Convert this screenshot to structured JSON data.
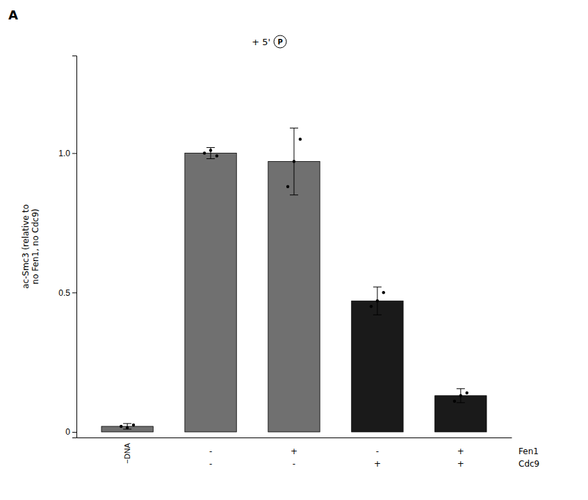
{
  "chart_data": {
    "type": "bar",
    "panel_label": "A",
    "categories": [
      "−DNA",
      null,
      null,
      null,
      null
    ],
    "x_label_rows": [
      {
        "name": "Fen1",
        "labels": [
          null,
          "-",
          "+",
          "-",
          "+"
        ]
      },
      {
        "name": "Cdc9",
        "labels": [
          null,
          "-",
          "-",
          "+",
          "+"
        ]
      }
    ],
    "values": [
      0.02,
      1.0,
      0.97,
      0.47,
      0.13
    ],
    "errors": [
      0.01,
      0.02,
      0.12,
      0.05,
      0.025
    ],
    "colors": [
      "#707070",
      "#707070",
      "#707070",
      "#1a1a1a",
      "#1a1a1a"
    ],
    "points": [
      [
        0.02,
        0.015,
        0.025
      ],
      [
        1.0,
        1.01,
        0.99
      ],
      [
        0.88,
        0.97,
        1.05
      ],
      [
        0.45,
        0.47,
        0.5
      ],
      [
        0.11,
        0.13,
        0.14
      ]
    ],
    "ylabel": "ac-Smc3 (relative to\nno Fen1, no Cdc9)",
    "ylim": [
      -0.02,
      1.35
    ],
    "yticks": [
      0,
      0.5,
      {
        "value": 1.0,
        "label": "1.0"
      }
    ],
    "annotations": [
      {
        "text": "+ 5'"
      },
      {
        "text": "P"
      }
    ],
    "grid": false
  }
}
